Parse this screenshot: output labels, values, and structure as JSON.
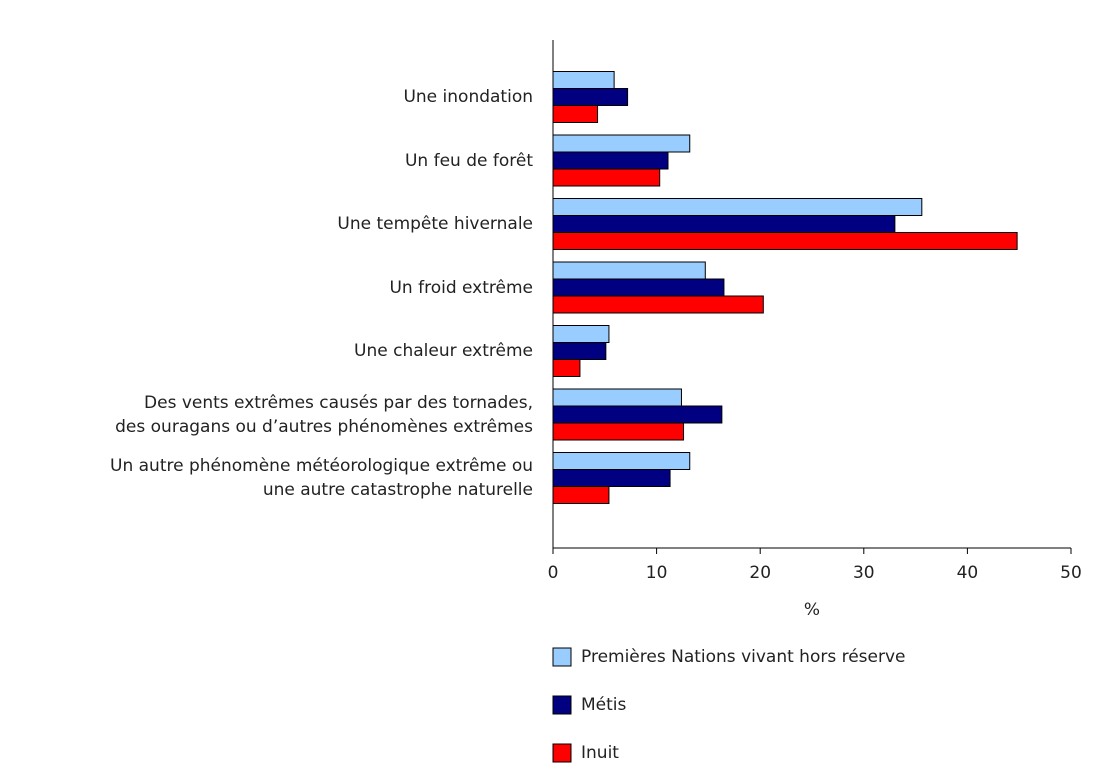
{
  "chart_data": {
    "type": "bar",
    "orientation": "horizontal",
    "categories": [
      "Une inondation",
      "Un feu de forêt",
      "Une tempête hivernale",
      "Un froid extrême",
      "Une chaleur extrême",
      "Des vents extrêmes causés par des tornades,\ndes ouragans ou d’autres phénomènes extrêmes",
      "Un autre phénomène météorologique extrême ou\nune autre catastrophe naturelle"
    ],
    "series": [
      {
        "name": "Premières Nations vivant hors réserve",
        "color": "#99ccff",
        "values": [
          5.9,
          13.2,
          35.6,
          14.7,
          5.4,
          12.4,
          13.2
        ]
      },
      {
        "name": "Métis",
        "color": "#000080",
        "values": [
          7.2,
          11.1,
          33.0,
          16.5,
          5.1,
          16.3,
          11.3
        ]
      },
      {
        "name": "Inuit",
        "color": "#ff0000",
        "values": [
          4.3,
          10.3,
          44.8,
          20.3,
          2.6,
          12.6,
          5.4
        ]
      }
    ],
    "xlim": [
      0,
      50
    ],
    "xticks": [
      0,
      10,
      20,
      30,
      40,
      50
    ],
    "xlabel": "%"
  }
}
